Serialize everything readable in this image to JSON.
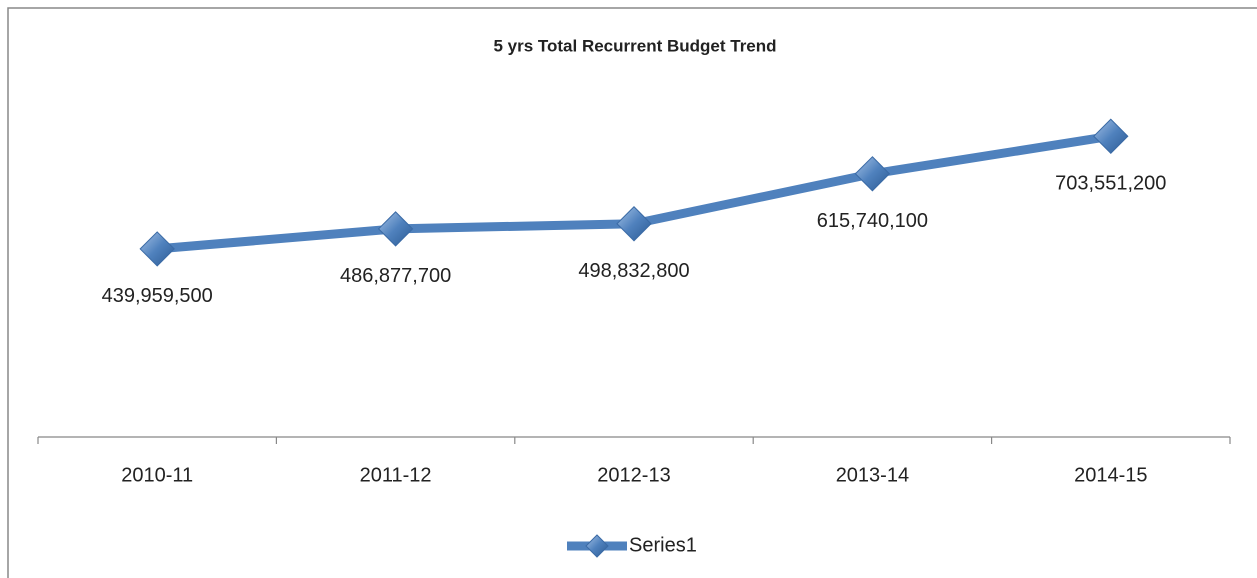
{
  "chart_data": {
    "type": "line",
    "title": "5 yrs Total Recurrent Budget Trend",
    "categories": [
      "2010-11",
      "2011-12",
      "2012-13",
      "2013-14",
      "2014-15"
    ],
    "series": [
      {
        "name": "Series1",
        "color": "#4f81bd",
        "values": [
          439959500,
          486877700,
          498832800,
          615740100,
          703551200
        ],
        "value_labels": [
          "439,959,500",
          "486,877,700",
          "498,832,800",
          "615,740,100",
          "703,551,200"
        ]
      }
    ],
    "ylim": [
      0,
      800000000
    ],
    "grid": false,
    "legend": "bottom"
  }
}
